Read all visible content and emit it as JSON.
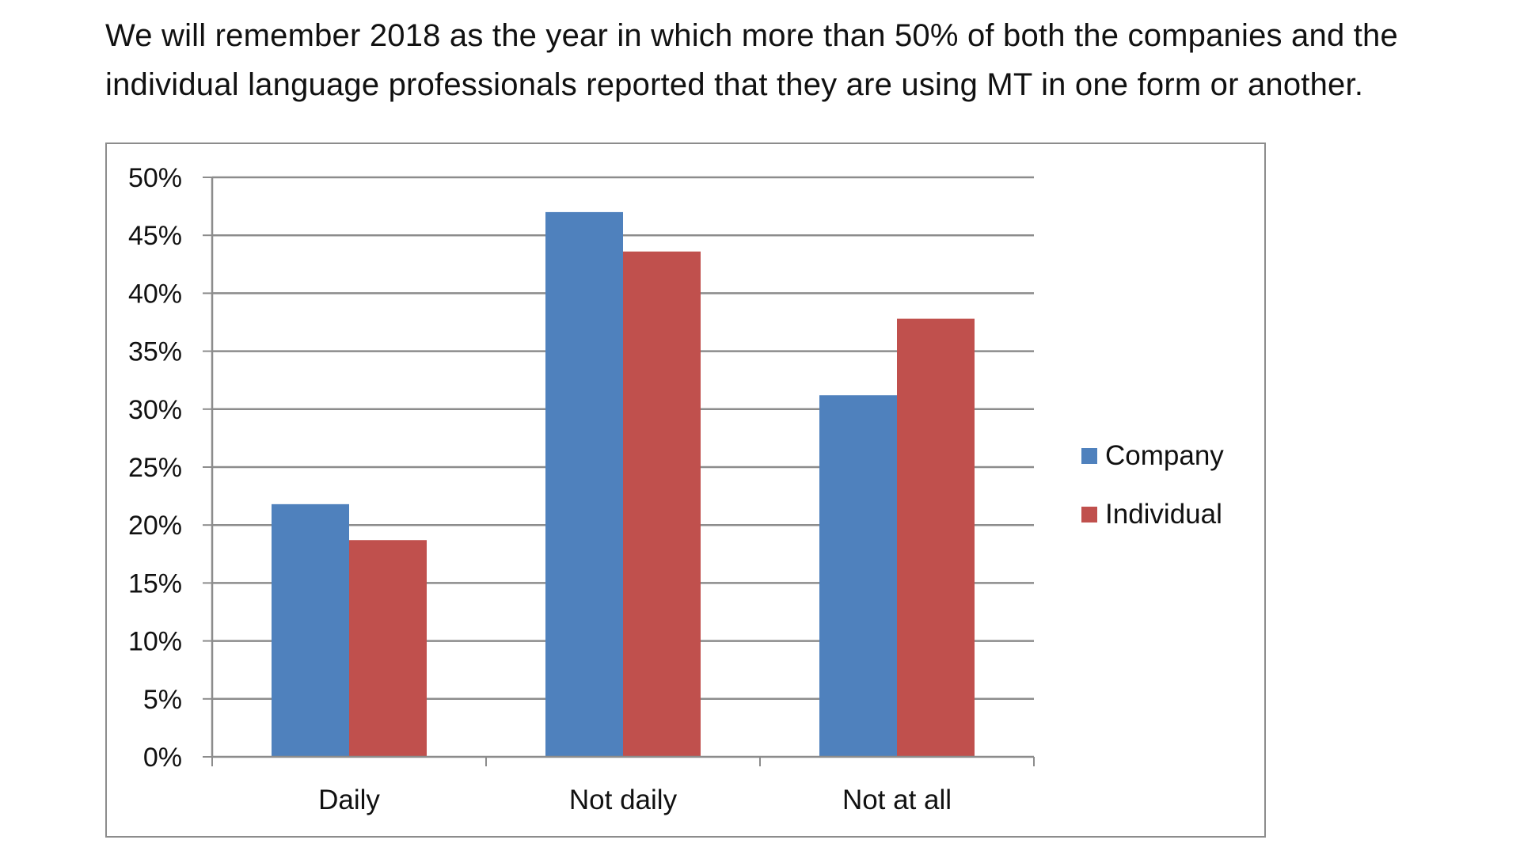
{
  "intro": {
    "line1": "We will remember 2018 as the year in which more than 50% of both the companies and the",
    "line2": "individual language professionals reported that they are using MT in one form or another."
  },
  "chart_data": {
    "type": "bar",
    "categories": [
      "Daily",
      "Not daily",
      "Not at all"
    ],
    "series": [
      {
        "name": "Company",
        "values": [
          21.8,
          47.0,
          31.2
        ],
        "color": "#4f81bd"
      },
      {
        "name": "Individual",
        "values": [
          18.7,
          43.6,
          37.8
        ],
        "color": "#c0504d"
      }
    ],
    "ylim": [
      0,
      50
    ],
    "yticks": [
      "0%",
      "5%",
      "10%",
      "15%",
      "20%",
      "25%",
      "30%",
      "35%",
      "40%",
      "45%",
      "50%"
    ],
    "title": "",
    "xlabel": "",
    "ylabel": "",
    "grid": true,
    "legend_position": "right"
  }
}
